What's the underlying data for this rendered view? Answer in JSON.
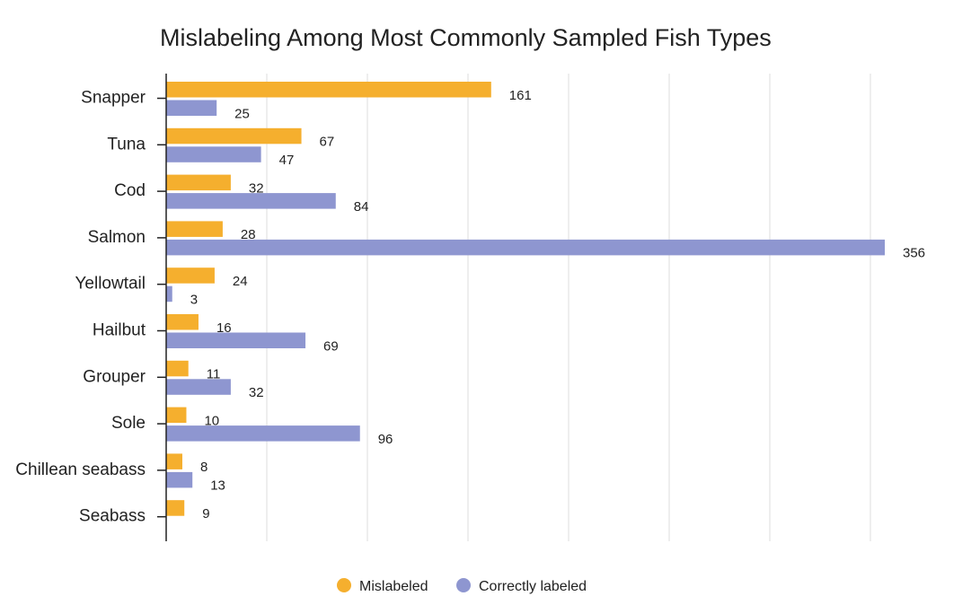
{
  "chart_data": {
    "type": "bar",
    "orientation": "horizontal",
    "title": "Mislabeling Among Most Commonly Sampled Fish Types",
    "categories": [
      "Snapper",
      "Tuna",
      "Cod",
      "Salmon",
      "Yellowtail",
      "Hailbut",
      "Grouper",
      "Sole",
      "Chillean seabass",
      "Seabass"
    ],
    "series": [
      {
        "name": "Mislabeled",
        "color": "#F5AF2E",
        "values": [
          161,
          67,
          32,
          28,
          24,
          16,
          11,
          10,
          8,
          9
        ]
      },
      {
        "name": "Correctly labeled",
        "color": "#8E96D0",
        "values": [
          25,
          47,
          84,
          356,
          3,
          69,
          32,
          96,
          13,
          null
        ]
      }
    ],
    "xlim": [
      0,
      360
    ],
    "grid": true,
    "legend": "bottom"
  }
}
